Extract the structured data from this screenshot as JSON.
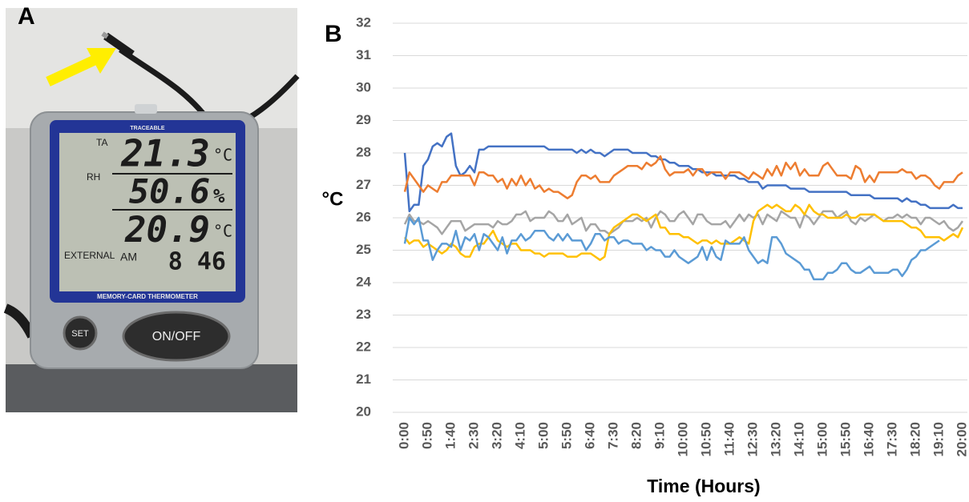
{
  "photo": {
    "label": "A",
    "brand": "TRACEABLE",
    "model": "MEMORY-CARD THERMOMETER",
    "readings": [
      {
        "label": "TA",
        "value": "21.3",
        "unit": "°C"
      },
      {
        "label": "RH",
        "value": "50.6",
        "unit": "%"
      },
      {
        "label": "",
        "value": "20.9",
        "unit": "°C"
      }
    ],
    "external": "EXTERNAL",
    "ampm": "AM",
    "clock": "8 46",
    "buttons": [
      "SET",
      "ON/OFF"
    ]
  },
  "chart_data": {
    "type": "line",
    "panel_label": "B",
    "x_label": "Time (Hours)",
    "y_label": "°C",
    "ylim": [
      20,
      32
    ],
    "yticks": [
      20,
      21,
      22,
      23,
      24,
      25,
      26,
      27,
      28,
      29,
      30,
      31,
      32
    ],
    "grid": true,
    "categories": [
      "0:00",
      null,
      null,
      null,
      null,
      "0:50",
      null,
      null,
      null,
      null,
      "1:40",
      null,
      null,
      null,
      null,
      "2:30",
      null,
      null,
      null,
      null,
      "3:20",
      null,
      null,
      null,
      null,
      "4:10",
      null,
      null,
      null,
      null,
      "5:00",
      null,
      null,
      null,
      null,
      "5:50",
      null,
      null,
      null,
      null,
      "6:40",
      null,
      null,
      null,
      null,
      "7:30",
      null,
      null,
      null,
      null,
      "8:20",
      null,
      null,
      null,
      null,
      "9:10",
      null,
      null,
      null,
      null,
      "10:00",
      null,
      null,
      null,
      null,
      "10:50",
      null,
      null,
      null,
      null,
      "11:40",
      null,
      null,
      null,
      null,
      "12:30",
      null,
      null,
      null,
      null,
      "13:20",
      null,
      null,
      null,
      null,
      "14:10",
      null,
      null,
      null,
      null,
      "15:00",
      null,
      null,
      null,
      null,
      "15:50",
      null,
      null,
      null,
      null,
      "16:40",
      null,
      null,
      null,
      null,
      "17:30",
      null,
      null,
      null,
      null,
      "18:20",
      null,
      null,
      null,
      null,
      "19:10",
      null,
      null,
      null,
      null,
      "20:00"
    ],
    "series": [
      {
        "color": "#4472c4",
        "values": [
          28.0,
          26.2,
          26.4,
          26.4,
          27.6,
          27.8,
          28.2,
          28.3,
          28.2,
          28.5,
          28.6,
          27.6,
          27.3,
          27.4,
          27.6,
          27.4,
          28.1,
          28.1,
          28.2,
          28.2,
          28.2,
          28.2,
          28.2,
          28.2,
          28.2,
          28.2,
          28.2,
          28.2,
          28.2,
          28.2,
          28.2,
          28.1,
          28.1,
          28.1,
          28.1,
          28.1,
          28.1,
          28.0,
          28.1,
          28.0,
          28.1,
          28.0,
          28.0,
          27.9,
          28.0,
          28.1,
          28.1,
          28.1,
          28.1,
          28.0,
          28.0,
          28.0,
          28.0,
          27.9,
          27.9,
          27.8,
          27.8,
          27.7,
          27.7,
          27.6,
          27.6,
          27.6,
          27.5,
          27.5,
          27.4,
          27.4,
          27.4,
          27.3,
          27.3,
          27.3,
          27.3,
          27.3,
          27.2,
          27.2,
          27.1,
          27.1,
          27.1,
          26.9,
          27.0,
          27.0,
          27.0,
          27.0,
          27.0,
          26.9,
          26.9,
          26.9,
          26.9,
          26.8,
          26.8,
          26.8,
          26.8,
          26.8,
          26.8,
          26.8,
          26.8,
          26.8,
          26.7,
          26.7,
          26.7,
          26.7,
          26.7,
          26.6,
          26.6,
          26.6,
          26.6,
          26.6,
          26.6,
          26.5,
          26.6,
          26.5,
          26.5,
          26.4,
          26.4,
          26.3,
          26.3,
          26.3,
          26.3,
          26.3,
          26.4,
          26.3,
          26.3
        ]
      },
      {
        "color": "#ed7d31",
        "values": [
          26.8,
          27.4,
          27.2,
          27.0,
          26.8,
          27.0,
          26.9,
          26.8,
          27.1,
          27.1,
          27.3,
          27.3,
          27.3,
          27.3,
          27.3,
          27.0,
          27.4,
          27.4,
          27.3,
          27.3,
          27.1,
          27.2,
          26.9,
          27.2,
          27.0,
          27.3,
          27.0,
          27.2,
          26.9,
          27.0,
          26.8,
          26.9,
          26.8,
          26.8,
          26.7,
          26.6,
          26.7,
          27.1,
          27.3,
          27.3,
          27.2,
          27.3,
          27.1,
          27.1,
          27.1,
          27.3,
          27.4,
          27.5,
          27.6,
          27.6,
          27.6,
          27.5,
          27.7,
          27.6,
          27.7,
          27.9,
          27.5,
          27.3,
          27.4,
          27.4,
          27.4,
          27.5,
          27.3,
          27.5,
          27.5,
          27.3,
          27.4,
          27.4,
          27.4,
          27.2,
          27.4,
          27.4,
          27.4,
          27.3,
          27.2,
          27.4,
          27.3,
          27.2,
          27.5,
          27.3,
          27.6,
          27.3,
          27.7,
          27.5,
          27.7,
          27.3,
          27.5,
          27.3,
          27.3,
          27.3,
          27.6,
          27.7,
          27.5,
          27.3,
          27.3,
          27.3,
          27.2,
          27.6,
          27.5,
          27.1,
          27.3,
          27.1,
          27.4,
          27.4,
          27.4,
          27.4,
          27.4,
          27.5,
          27.4,
          27.4,
          27.2,
          27.3,
          27.3,
          27.2,
          27.0,
          26.9,
          27.1,
          27.1,
          27.1,
          27.3,
          27.4
        ]
      },
      {
        "color": "#a5a5a5",
        "values": [
          25.8,
          26.1,
          25.9,
          25.9,
          25.8,
          25.9,
          25.8,
          25.7,
          25.5,
          25.7,
          25.9,
          25.9,
          25.9,
          25.6,
          25.7,
          25.8,
          25.8,
          25.8,
          25.8,
          25.7,
          25.9,
          25.8,
          25.8,
          25.9,
          26.1,
          26.1,
          26.2,
          25.9,
          26.0,
          26.0,
          26.0,
          26.2,
          26.1,
          25.9,
          25.9,
          26.1,
          25.8,
          25.9,
          26.0,
          25.6,
          25.8,
          25.8,
          25.6,
          25.6,
          25.5,
          25.6,
          25.7,
          25.9,
          25.9,
          25.9,
          26.0,
          25.9,
          26.0,
          25.7,
          26.0,
          26.2,
          26.1,
          25.9,
          25.9,
          26.1,
          26.2,
          26.0,
          25.8,
          26.1,
          26.1,
          25.9,
          25.8,
          25.8,
          25.8,
          25.9,
          25.7,
          25.9,
          26.1,
          25.9,
          26.1,
          26.0,
          26.1,
          25.8,
          26.1,
          26.0,
          25.9,
          26.2,
          26.1,
          26.0,
          26.0,
          25.7,
          26.1,
          26.0,
          25.8,
          26.0,
          26.2,
          26.2,
          26.2,
          26.0,
          26.1,
          26.2,
          25.9,
          25.8,
          26.0,
          25.9,
          26.0,
          26.1,
          26.0,
          25.9,
          26.0,
          26.0,
          26.1,
          26.0,
          26.1,
          26.0,
          26.0,
          25.8,
          26.0,
          26.0,
          25.9,
          25.8,
          25.9,
          25.7,
          25.6,
          25.7,
          25.9
        ]
      },
      {
        "color": "#ffc000",
        "values": [
          25.4,
          25.2,
          25.3,
          25.3,
          25.1,
          25.2,
          25.1,
          25.0,
          24.9,
          25.0,
          25.2,
          25.1,
          24.9,
          24.8,
          24.8,
          25.1,
          25.2,
          25.2,
          25.4,
          25.6,
          25.3,
          25.2,
          25.1,
          25.2,
          25.2,
          25.0,
          25.0,
          25.0,
          24.9,
          24.9,
          24.8,
          24.9,
          24.9,
          24.9,
          24.9,
          24.8,
          24.8,
          24.8,
          24.9,
          24.9,
          24.9,
          24.8,
          24.7,
          24.8,
          25.5,
          25.7,
          25.8,
          25.9,
          26.0,
          26.1,
          26.1,
          26.0,
          25.9,
          26.0,
          26.1,
          25.7,
          25.7,
          25.5,
          25.5,
          25.5,
          25.4,
          25.4,
          25.3,
          25.2,
          25.3,
          25.3,
          25.2,
          25.3,
          25.2,
          25.2,
          25.2,
          25.3,
          25.4,
          25.3,
          25.2,
          25.9,
          26.2,
          26.3,
          26.4,
          26.3,
          26.4,
          26.3,
          26.2,
          26.2,
          26.4,
          26.3,
          26.1,
          26.4,
          26.2,
          26.1,
          26.1,
          26.0,
          26.0,
          26.0,
          26.0,
          26.1,
          26.0,
          26.0,
          26.1,
          26.1,
          26.1,
          26.1,
          26.0,
          25.9,
          25.9,
          25.9,
          25.9,
          25.9,
          25.8,
          25.7,
          25.7,
          25.6,
          25.4,
          25.4,
          25.4,
          25.4,
          25.3,
          25.4,
          25.5,
          25.4,
          25.7
        ]
      },
      {
        "color": "#5b9bd5",
        "values": [
          25.2,
          26.0,
          25.8,
          26.0,
          25.3,
          25.3,
          24.7,
          25.0,
          25.2,
          25.2,
          25.1,
          25.6,
          25.0,
          25.4,
          25.3,
          25.5,
          25.0,
          25.5,
          25.4,
          25.2,
          25.0,
          25.4,
          24.9,
          25.3,
          25.3,
          25.5,
          25.3,
          25.4,
          25.6,
          25.6,
          25.6,
          25.4,
          25.3,
          25.5,
          25.3,
          25.5,
          25.3,
          25.3,
          25.3,
          25.0,
          25.2,
          25.5,
          25.5,
          25.3,
          25.4,
          25.4,
          25.2,
          25.3,
          25.3,
          25.2,
          25.2,
          25.2,
          25.0,
          25.1,
          25.0,
          25.0,
          24.8,
          24.8,
          25.0,
          24.8,
          24.7,
          24.6,
          24.7,
          24.8,
          25.1,
          24.7,
          25.1,
          24.8,
          24.7,
          25.3,
          25.2,
          25.2,
          25.2,
          25.4,
          25.0,
          24.8,
          24.6,
          24.7,
          24.6,
          25.4,
          25.4,
          25.2,
          24.9,
          24.8,
          24.7,
          24.6,
          24.4,
          24.4,
          24.1,
          24.1,
          24.1,
          24.3,
          24.3,
          24.4,
          24.6,
          24.6,
          24.4,
          24.3,
          24.3,
          24.4,
          24.5,
          24.3,
          24.3,
          24.3,
          24.3,
          24.4,
          24.4,
          24.2,
          24.4,
          24.7,
          24.8,
          25.0,
          25.0,
          25.1,
          25.2,
          25.3,
          null,
          null,
          null,
          null,
          null
        ]
      }
    ]
  }
}
